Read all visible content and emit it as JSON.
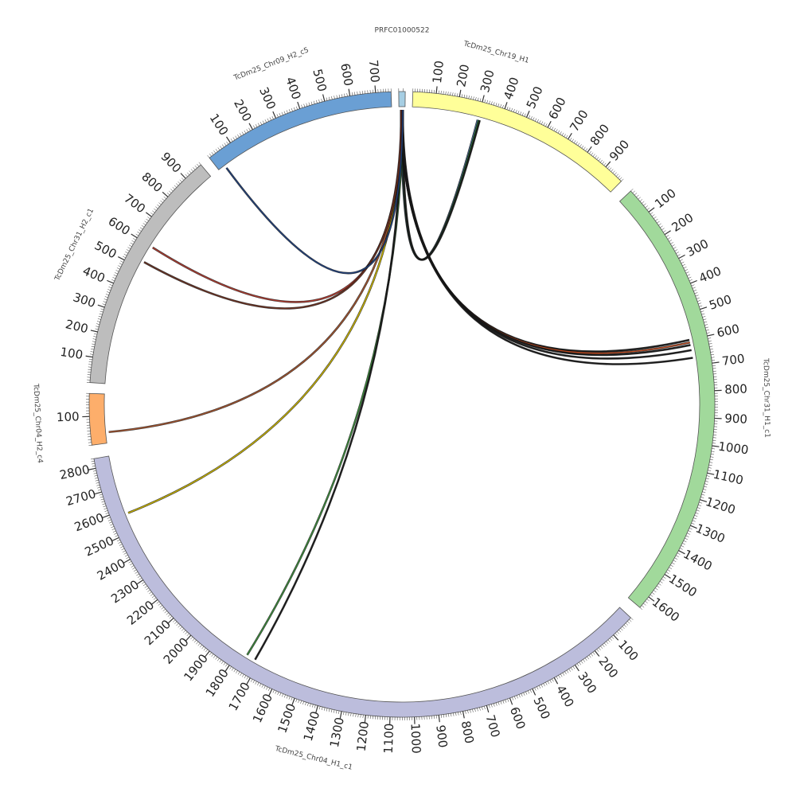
{
  "diagram": {
    "segments": [
      {
        "name": "PRFC01000522",
        "length": 14,
        "color": "#a6cee3",
        "tick_labels": []
      },
      {
        "name": "TcDm25_Chr19_H1",
        "length": 990,
        "color": "#ffff99",
        "tick_labels": [
          "100",
          "200",
          "300",
          "400",
          "500",
          "600",
          "700",
          "800",
          "900"
        ]
      },
      {
        "name": "TcDm25_Chr31_H1_c1",
        "length": 1650,
        "color": "#a1d99b",
        "tick_labels": [
          "100",
          "200",
          "300",
          "400",
          "500",
          "600",
          "700",
          "800",
          "900",
          "1000",
          "1100",
          "1200",
          "1300",
          "1400",
          "1500",
          "1600"
        ]
      },
      {
        "name": "TcDm25_Chr04_H1_c1",
        "length": 2840,
        "color": "#bcbddc",
        "tick_labels": [
          "100",
          "200",
          "300",
          "400",
          "500",
          "600",
          "700",
          "800",
          "900",
          "1000",
          "1100",
          "1200",
          "1300",
          "1400",
          "1500",
          "1600",
          "1700",
          "1800",
          "1900",
          "2000",
          "2100",
          "2200",
          "2300",
          "2400",
          "2500",
          "2600",
          "2700",
          "2800"
        ]
      },
      {
        "name": "TcDm25_Chr04_H2_c4",
        "length": 180,
        "color": "#fdae6b",
        "tick_labels": [
          "100"
        ]
      },
      {
        "name": "TcDm25_Chr31_H2_c1",
        "length": 980,
        "color": "#bdbdbd",
        "tick_labels": [
          "100",
          "200",
          "300",
          "400",
          "500",
          "600",
          "700",
          "800",
          "900"
        ]
      },
      {
        "name": "TcDm25_Chr09_H2_c5",
        "length": 760,
        "color": "#6a9fd4",
        "tick_labels": [
          "100",
          "200",
          "300",
          "400",
          "500",
          "600",
          "700"
        ]
      }
    ],
    "links": [
      {
        "from": "PRFC01000522",
        "to": "TcDm25_Chr19_H1",
        "to_pos": 300,
        "color": "#4a6fa5"
      },
      {
        "from": "PRFC01000522",
        "to": "TcDm25_Chr19_H1",
        "to_pos": 305,
        "color": "#2e7d32"
      },
      {
        "from": "PRFC01000522",
        "to": "TcDm25_Chr19_H1",
        "to_pos": 310,
        "color": "#1a1a1a"
      },
      {
        "from": "PRFC01000522",
        "to": "TcDm25_Chr31_H1_c1",
        "to_pos": 600,
        "color": "#1a1a1a"
      },
      {
        "from": "PRFC01000522",
        "to": "TcDm25_Chr31_H1_c1",
        "to_pos": 610,
        "color": "#c04a1f"
      },
      {
        "from": "PRFC01000522",
        "to": "TcDm25_Chr31_H1_c1",
        "to_pos": 620,
        "color": "#1a1a1a"
      },
      {
        "from": "PRFC01000522",
        "to": "TcDm25_Chr31_H1_c1",
        "to_pos": 640,
        "color": "#1a1a1a"
      },
      {
        "from": "PRFC01000522",
        "to": "TcDm25_Chr31_H1_c1",
        "to_pos": 670,
        "color": "#1a1a1a"
      },
      {
        "from": "PRFC01000522",
        "to": "TcDm25_Chr04_H1_c1",
        "to_pos": 1760,
        "color": "#3a8a3a"
      },
      {
        "from": "PRFC01000522",
        "to": "TcDm25_Chr04_H1_c1",
        "to_pos": 1720,
        "color": "#1a1a1a"
      },
      {
        "from": "PRFC01000522",
        "to": "TcDm25_Chr04_H1_c1",
        "to_pos": 2580,
        "color": "#c9b400"
      },
      {
        "from": "PRFC01000522",
        "to": "TcDm25_Chr04_H2_c4",
        "to_pos": 40,
        "color": "#a0522d"
      },
      {
        "from": "PRFC01000522",
        "to": "TcDm25_Chr31_H2_c1",
        "to_pos": 600,
        "color": "#b03a2e"
      },
      {
        "from": "PRFC01000522",
        "to": "TcDm25_Chr31_H2_c1",
        "to_pos": 530,
        "color": "#6b3020"
      },
      {
        "from": "PRFC01000522",
        "to": "TcDm25_Chr09_H2_c5",
        "to_pos": 30,
        "color": "#1f3f7a"
      }
    ]
  }
}
